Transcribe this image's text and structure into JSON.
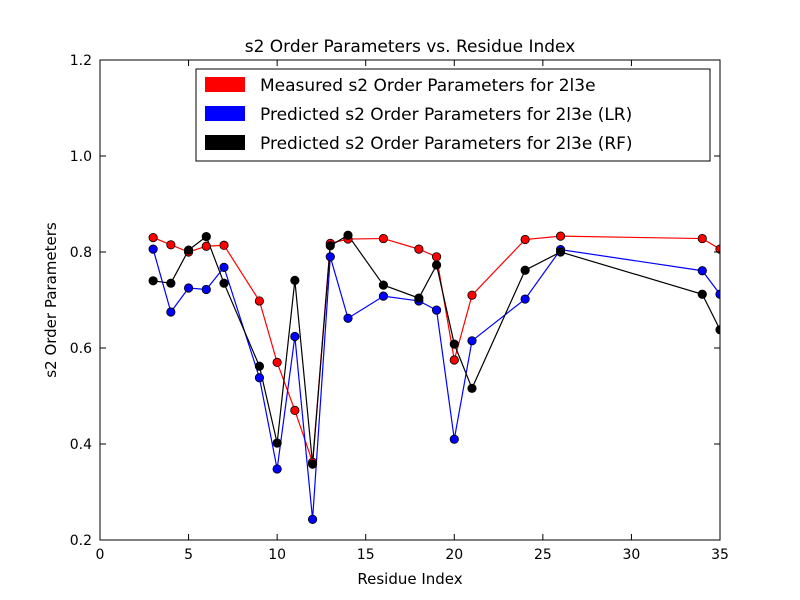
{
  "chart_data": {
    "type": "line",
    "title": "s2 Order Parameters vs. Residue Index",
    "xlabel": "Residue Index",
    "ylabel": "s2 Order Parameters",
    "xlim": [
      0,
      35
    ],
    "ylim": [
      0.2,
      1.2
    ],
    "xticks": [
      0,
      5,
      10,
      15,
      20,
      25,
      30,
      35
    ],
    "yticks": [
      0.2,
      0.4,
      0.6,
      0.8,
      1.0,
      1.2
    ],
    "xtick_labels": [
      "0",
      "5",
      "10",
      "15",
      "20",
      "25",
      "30",
      "35"
    ],
    "ytick_labels": [
      "0.2",
      "0.4",
      "0.6",
      "0.8",
      "1.0",
      "1.2"
    ],
    "grid": false,
    "legend_position": "top-right",
    "series": [
      {
        "name": "Measured s2 Order Parameters for 2l3e",
        "color": "#ff0000",
        "x": [
          3,
          4,
          5,
          6,
          7,
          9,
          10,
          11,
          12,
          13,
          14,
          16,
          18,
          19,
          20,
          21,
          24,
          26,
          34,
          35
        ],
        "y": [
          0.83,
          0.815,
          0.8,
          0.812,
          0.814,
          0.698,
          0.57,
          0.47,
          0.362,
          0.818,
          0.827,
          0.828,
          0.806,
          0.79,
          0.575,
          0.71,
          0.826,
          0.833,
          0.828,
          0.806
        ]
      },
      {
        "name": "Predicted s2 Order Parameters for 2l3e (LR)",
        "color": "#0000ff",
        "x": [
          3,
          4,
          5,
          6,
          7,
          9,
          10,
          11,
          12,
          13,
          14,
          16,
          18,
          19,
          20,
          21,
          24,
          26,
          34,
          35
        ],
        "y": [
          0.806,
          0.675,
          0.725,
          0.722,
          0.768,
          0.538,
          0.348,
          0.624,
          0.243,
          0.79,
          0.662,
          0.708,
          0.698,
          0.679,
          0.41,
          0.615,
          0.702,
          0.805,
          0.761,
          0.712
        ]
      },
      {
        "name": "Predicted s2 Order Parameters for 2l3e (RF)",
        "color": "#000000",
        "x": [
          3,
          4,
          5,
          6,
          7,
          9,
          10,
          11,
          12,
          13,
          14,
          16,
          18,
          19,
          20,
          21,
          24,
          26,
          34,
          35
        ],
        "y": [
          0.74,
          0.735,
          0.804,
          0.832,
          0.735,
          0.562,
          0.402,
          0.741,
          0.358,
          0.813,
          0.835,
          0.731,
          0.704,
          0.773,
          0.608,
          0.516,
          0.762,
          0.8,
          0.712,
          0.638
        ]
      }
    ]
  }
}
